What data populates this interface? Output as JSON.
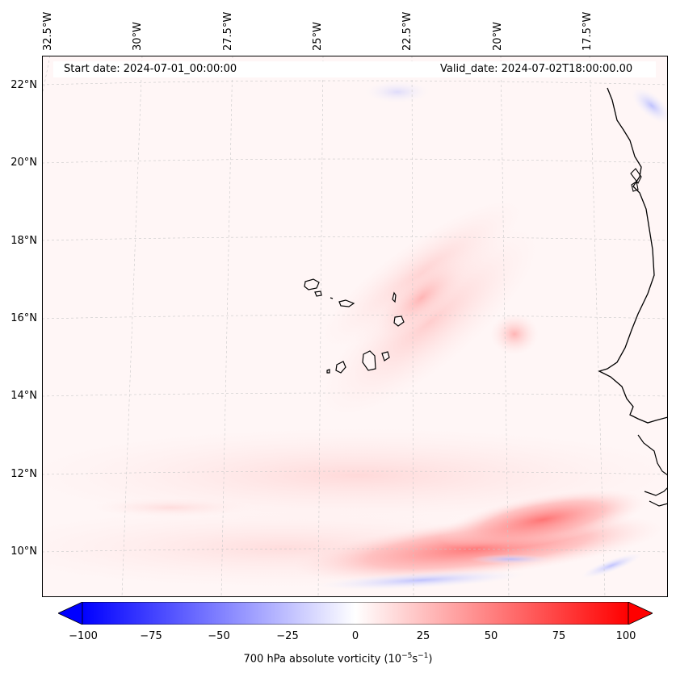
{
  "map": {
    "projection_labels": {
      "longitudes": [
        "32.5°W",
        "30°W",
        "27.5°W",
        "25°W",
        "22.5°W",
        "20°W",
        "17.5°W"
      ],
      "latitudes": [
        "22°N",
        "20°N",
        "18°N",
        "16°N",
        "14°N",
        "12°N",
        "10°N"
      ]
    },
    "start_date": "Start date: 2024-07-01_00:00:00",
    "valid_date": "Valid_date: 2024-07-02T18:00:00.00",
    "field": "700 hPa absolute vorticity",
    "units_label": "700 hPa absolute vorticity (10",
    "units_exp1": "−5",
    "units_mid": "s",
    "units_exp2": "−1",
    "units_close": ")",
    "colorbar": {
      "min": -100,
      "max": 100,
      "ticks": [
        "−100",
        "−75",
        "−50",
        "−25",
        "0",
        "25",
        "50",
        "75",
        "100"
      ],
      "colors": {
        "low": "#0000ff",
        "mid": "#ffffff",
        "high": "#ff0000"
      }
    }
  }
}
